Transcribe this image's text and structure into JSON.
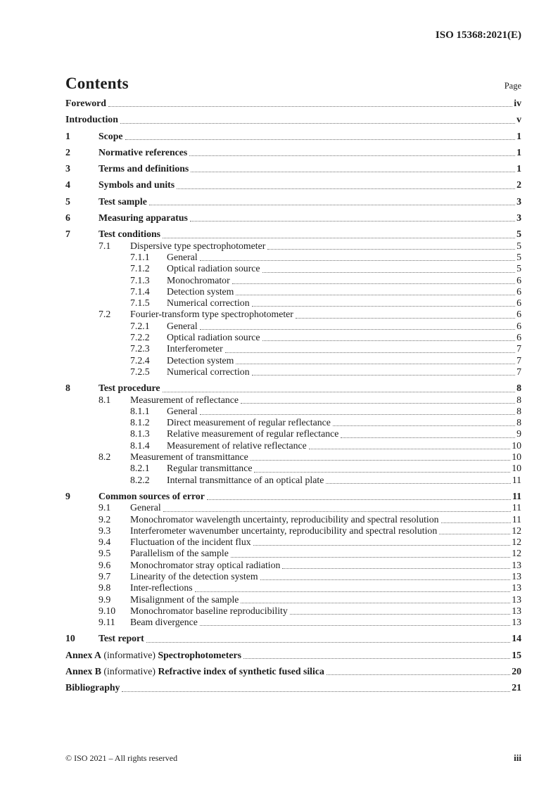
{
  "header": {
    "doc_ref": "ISO 15368:2021(E)"
  },
  "toc": {
    "title": "Contents",
    "page_label": "Page",
    "entries": [
      {
        "level": 0,
        "num": "",
        "parts": [
          {
            "text": "Foreword",
            "bold": true
          }
        ],
        "page": "iv",
        "major": true
      },
      {
        "level": 0,
        "num": "",
        "parts": [
          {
            "text": "Introduction",
            "bold": true
          }
        ],
        "page": "v",
        "major": true
      },
      {
        "level": 1,
        "num": "1",
        "parts": [
          {
            "text": "Scope",
            "bold": true
          }
        ],
        "page": "1",
        "major": true
      },
      {
        "level": 1,
        "num": "2",
        "parts": [
          {
            "text": "Normative references",
            "bold": true
          }
        ],
        "page": "1",
        "major": true
      },
      {
        "level": 1,
        "num": "3",
        "parts": [
          {
            "text": "Terms and definitions",
            "bold": true
          }
        ],
        "page": "1",
        "major": true
      },
      {
        "level": 1,
        "num": "4",
        "parts": [
          {
            "text": "Symbols and units",
            "bold": true
          }
        ],
        "page": "2",
        "major": true
      },
      {
        "level": 1,
        "num": "5",
        "parts": [
          {
            "text": "Test sample",
            "bold": true
          }
        ],
        "page": "3",
        "major": true
      },
      {
        "level": 1,
        "num": "6",
        "parts": [
          {
            "text": "Measuring apparatus",
            "bold": true
          }
        ],
        "page": "3",
        "major": true
      },
      {
        "level": 1,
        "num": "7",
        "parts": [
          {
            "text": "Test conditions",
            "bold": true
          }
        ],
        "page": "5",
        "major": true
      },
      {
        "level": 2,
        "num": "7.1",
        "parts": [
          {
            "text": "Dispersive type spectrophotometer",
            "bold": false
          }
        ],
        "page": "5",
        "major": false
      },
      {
        "level": 3,
        "num": "7.1.1",
        "parts": [
          {
            "text": "General",
            "bold": false
          }
        ],
        "page": "5",
        "major": false
      },
      {
        "level": 3,
        "num": "7.1.2",
        "parts": [
          {
            "text": "Optical radiation source",
            "bold": false
          }
        ],
        "page": "5",
        "major": false
      },
      {
        "level": 3,
        "num": "7.1.3",
        "parts": [
          {
            "text": "Monochromator",
            "bold": false
          }
        ],
        "page": "6",
        "major": false
      },
      {
        "level": 3,
        "num": "7.1.4",
        "parts": [
          {
            "text": "Detection system",
            "bold": false
          }
        ],
        "page": "6",
        "major": false
      },
      {
        "level": 3,
        "num": "7.1.5",
        "parts": [
          {
            "text": "Numerical correction",
            "bold": false
          }
        ],
        "page": "6",
        "major": false
      },
      {
        "level": 2,
        "num": "7.2",
        "parts": [
          {
            "text": "Fourier-transform type spectrophotometer",
            "bold": false
          }
        ],
        "page": "6",
        "major": false
      },
      {
        "level": 3,
        "num": "7.2.1",
        "parts": [
          {
            "text": "General",
            "bold": false
          }
        ],
        "page": "6",
        "major": false
      },
      {
        "level": 3,
        "num": "7.2.2",
        "parts": [
          {
            "text": "Optical radiation source",
            "bold": false
          }
        ],
        "page": "6",
        "major": false
      },
      {
        "level": 3,
        "num": "7.2.3",
        "parts": [
          {
            "text": "Interferometer",
            "bold": false
          }
        ],
        "page": "7",
        "major": false
      },
      {
        "level": 3,
        "num": "7.2.4",
        "parts": [
          {
            "text": "Detection system",
            "bold": false
          }
        ],
        "page": "7",
        "major": false
      },
      {
        "level": 3,
        "num": "7.2.5",
        "parts": [
          {
            "text": "Numerical correction",
            "bold": false
          }
        ],
        "page": "7",
        "major": false
      },
      {
        "level": 1,
        "num": "8",
        "parts": [
          {
            "text": "Test procedure",
            "bold": true
          }
        ],
        "page": "8",
        "major": true
      },
      {
        "level": 2,
        "num": "8.1",
        "parts": [
          {
            "text": "Measurement of reflectance",
            "bold": false
          }
        ],
        "page": "8",
        "major": false
      },
      {
        "level": 3,
        "num": "8.1.1",
        "parts": [
          {
            "text": "General",
            "bold": false
          }
        ],
        "page": "8",
        "major": false
      },
      {
        "level": 3,
        "num": "8.1.2",
        "parts": [
          {
            "text": "Direct measurement of regular reflectance",
            "bold": false
          }
        ],
        "page": "8",
        "major": false
      },
      {
        "level": 3,
        "num": "8.1.3",
        "parts": [
          {
            "text": "Relative measurement of regular reflectance",
            "bold": false
          }
        ],
        "page": "9",
        "major": false
      },
      {
        "level": 3,
        "num": "8.1.4",
        "parts": [
          {
            "text": "Measurement of relative reflectance",
            "bold": false
          }
        ],
        "page": "10",
        "major": false
      },
      {
        "level": 2,
        "num": "8.2",
        "parts": [
          {
            "text": "Measurement of transmittance",
            "bold": false
          }
        ],
        "page": "10",
        "major": false
      },
      {
        "level": 3,
        "num": "8.2.1",
        "parts": [
          {
            "text": "Regular transmittance",
            "bold": false
          }
        ],
        "page": "10",
        "major": false
      },
      {
        "level": 3,
        "num": "8.2.2",
        "parts": [
          {
            "text": "Internal transmittance of an optical plate",
            "bold": false
          }
        ],
        "page": "11",
        "major": false
      },
      {
        "level": 1,
        "num": "9",
        "parts": [
          {
            "text": "Common sources of error",
            "bold": true
          }
        ],
        "page": "11",
        "major": true
      },
      {
        "level": 2,
        "num": "9.1",
        "parts": [
          {
            "text": "General",
            "bold": false
          }
        ],
        "page": "11",
        "major": false
      },
      {
        "level": 2,
        "num": "9.2",
        "parts": [
          {
            "text": "Monochromator wavelength uncertainty, reproducibility and spectral resolution",
            "bold": false
          }
        ],
        "page": "11",
        "major": false
      },
      {
        "level": 2,
        "num": "9.3",
        "parts": [
          {
            "text": "Interferometer wavenumber uncertainty, reproducibility and spectral resolution",
            "bold": false
          }
        ],
        "page": "12",
        "major": false
      },
      {
        "level": 2,
        "num": "9.4",
        "parts": [
          {
            "text": "Fluctuation of the incident flux",
            "bold": false
          }
        ],
        "page": "12",
        "major": false
      },
      {
        "level": 2,
        "num": "9.5",
        "parts": [
          {
            "text": "Parallelism of the sample",
            "bold": false
          }
        ],
        "page": "12",
        "major": false
      },
      {
        "level": 2,
        "num": "9.6",
        "parts": [
          {
            "text": "Monochromator stray optical radiation",
            "bold": false
          }
        ],
        "page": "13",
        "major": false
      },
      {
        "level": 2,
        "num": "9.7",
        "parts": [
          {
            "text": "Linearity of the detection system",
            "bold": false
          }
        ],
        "page": "13",
        "major": false
      },
      {
        "level": 2,
        "num": "9.8",
        "parts": [
          {
            "text": "Inter-reflections",
            "bold": false
          }
        ],
        "page": "13",
        "major": false
      },
      {
        "level": 2,
        "num": "9.9",
        "parts": [
          {
            "text": "Misalignment of the sample",
            "bold": false
          }
        ],
        "page": "13",
        "major": false
      },
      {
        "level": 2,
        "num": "9.10",
        "parts": [
          {
            "text": "Monochromator baseline reproducibility",
            "bold": false
          }
        ],
        "page": "13",
        "major": false
      },
      {
        "level": 2,
        "num": "9.11",
        "parts": [
          {
            "text": "Beam divergence",
            "bold": false
          }
        ],
        "page": "13",
        "major": false
      },
      {
        "level": 1,
        "num": "10",
        "parts": [
          {
            "text": "Test report",
            "bold": true
          }
        ],
        "page": "14",
        "major": true
      },
      {
        "level": 0,
        "num": "",
        "parts": [
          {
            "text": "Annex A",
            "bold": true
          },
          {
            "text": " (informative) ",
            "bold": false
          },
          {
            "text": "Spectrophotometers",
            "bold": true
          }
        ],
        "page": "15",
        "major": true
      },
      {
        "level": 0,
        "num": "",
        "parts": [
          {
            "text": "Annex B",
            "bold": true
          },
          {
            "text": " (informative) ",
            "bold": false
          },
          {
            "text": "Refractive index of synthetic fused silica",
            "bold": true
          }
        ],
        "page": "20",
        "major": true
      },
      {
        "level": 0,
        "num": "",
        "parts": [
          {
            "text": "Bibliography",
            "bold": true
          }
        ],
        "page": "21",
        "major": true
      }
    ]
  },
  "footer": {
    "copyright": "© ISO 2021 – All rights reserved",
    "page_number": "iii"
  }
}
